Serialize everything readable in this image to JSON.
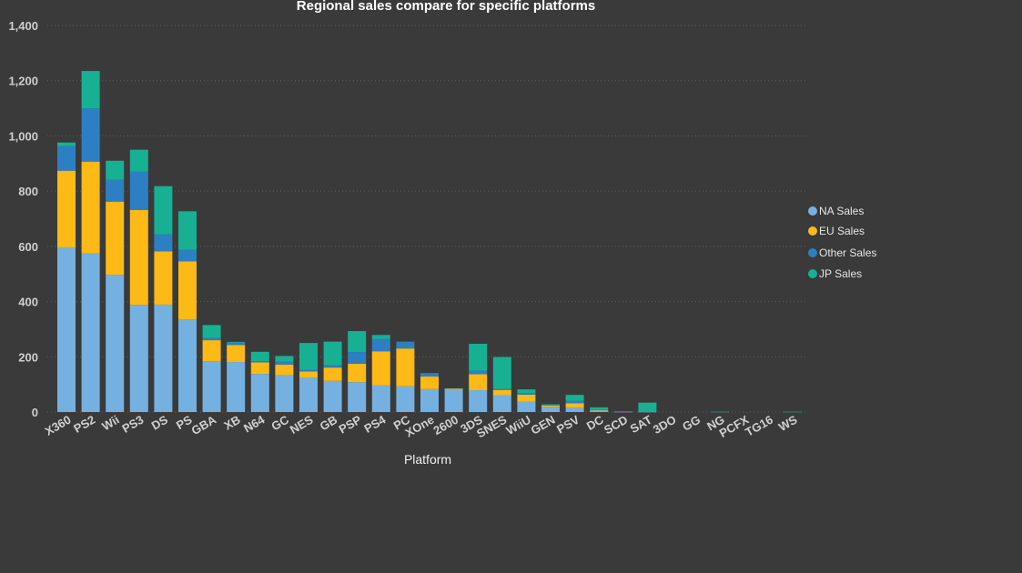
{
  "chart_data": {
    "type": "bar",
    "stacked": true,
    "title": "Regional sales compare for specific platforms",
    "xlabel": "Platform",
    "ylabel": "",
    "ylim": [
      0,
      1400
    ],
    "yticks": [
      0,
      200,
      400,
      600,
      800,
      1000,
      1200,
      1400
    ],
    "ytick_labels": [
      "0",
      "200",
      "400",
      "600",
      "800",
      "1,000",
      "1,200",
      "1,400"
    ],
    "grid": true,
    "legend_position": "right",
    "categories": [
      "X360",
      "PS2",
      "Wii",
      "PS3",
      "DS",
      "PS",
      "GBA",
      "XB",
      "N64",
      "GC",
      "NES",
      "GB",
      "PSP",
      "PS4",
      "PC",
      "XOne",
      "2600",
      "3DS",
      "SNES",
      "WiiU",
      "GEN",
      "PSV",
      "DC",
      "SCD",
      "SAT",
      "3DO",
      "GG",
      "NG",
      "PCFX",
      "TG16",
      "WS"
    ],
    "series": [
      {
        "name": "NA Sales",
        "color": "#75b1e0",
        "values": [
          595,
          574,
          497,
          388,
          389,
          335,
          184,
          181,
          138,
          133,
          125,
          113,
          108,
          96,
          93,
          83,
          80,
          79,
          61,
          38,
          19,
          16,
          5,
          1,
          1,
          0,
          0,
          0,
          0,
          0,
          0
        ]
      },
      {
        "name": "EU Sales",
        "color": "#fdb915",
        "values": [
          279,
          333,
          265,
          344,
          193,
          211,
          76,
          62,
          42,
          39,
          22,
          48,
          67,
          124,
          137,
          46,
          5,
          58,
          19,
          25,
          5,
          16,
          2,
          0,
          0,
          0,
          0,
          0,
          0,
          0,
          0
        ]
      },
      {
        "name": "Other Sales",
        "color": "#2d7fc3",
        "values": [
          89,
          193,
          79,
          138,
          61,
          41,
          8,
          9,
          4,
          10,
          5,
          8,
          42,
          44,
          25,
          12,
          1,
          13,
          3,
          6,
          1,
          9,
          1,
          0,
          0,
          0,
          0,
          0,
          0,
          0,
          0
        ]
      },
      {
        "name": "JP Sales",
        "color": "#18b093",
        "values": [
          13,
          135,
          69,
          80,
          175,
          140,
          47,
          2,
          34,
          21,
          98,
          86,
          76,
          15,
          0,
          0,
          0,
          97,
          116,
          13,
          3,
          21,
          9,
          1,
          33,
          0,
          0,
          1,
          0,
          0,
          1
        ]
      }
    ]
  }
}
